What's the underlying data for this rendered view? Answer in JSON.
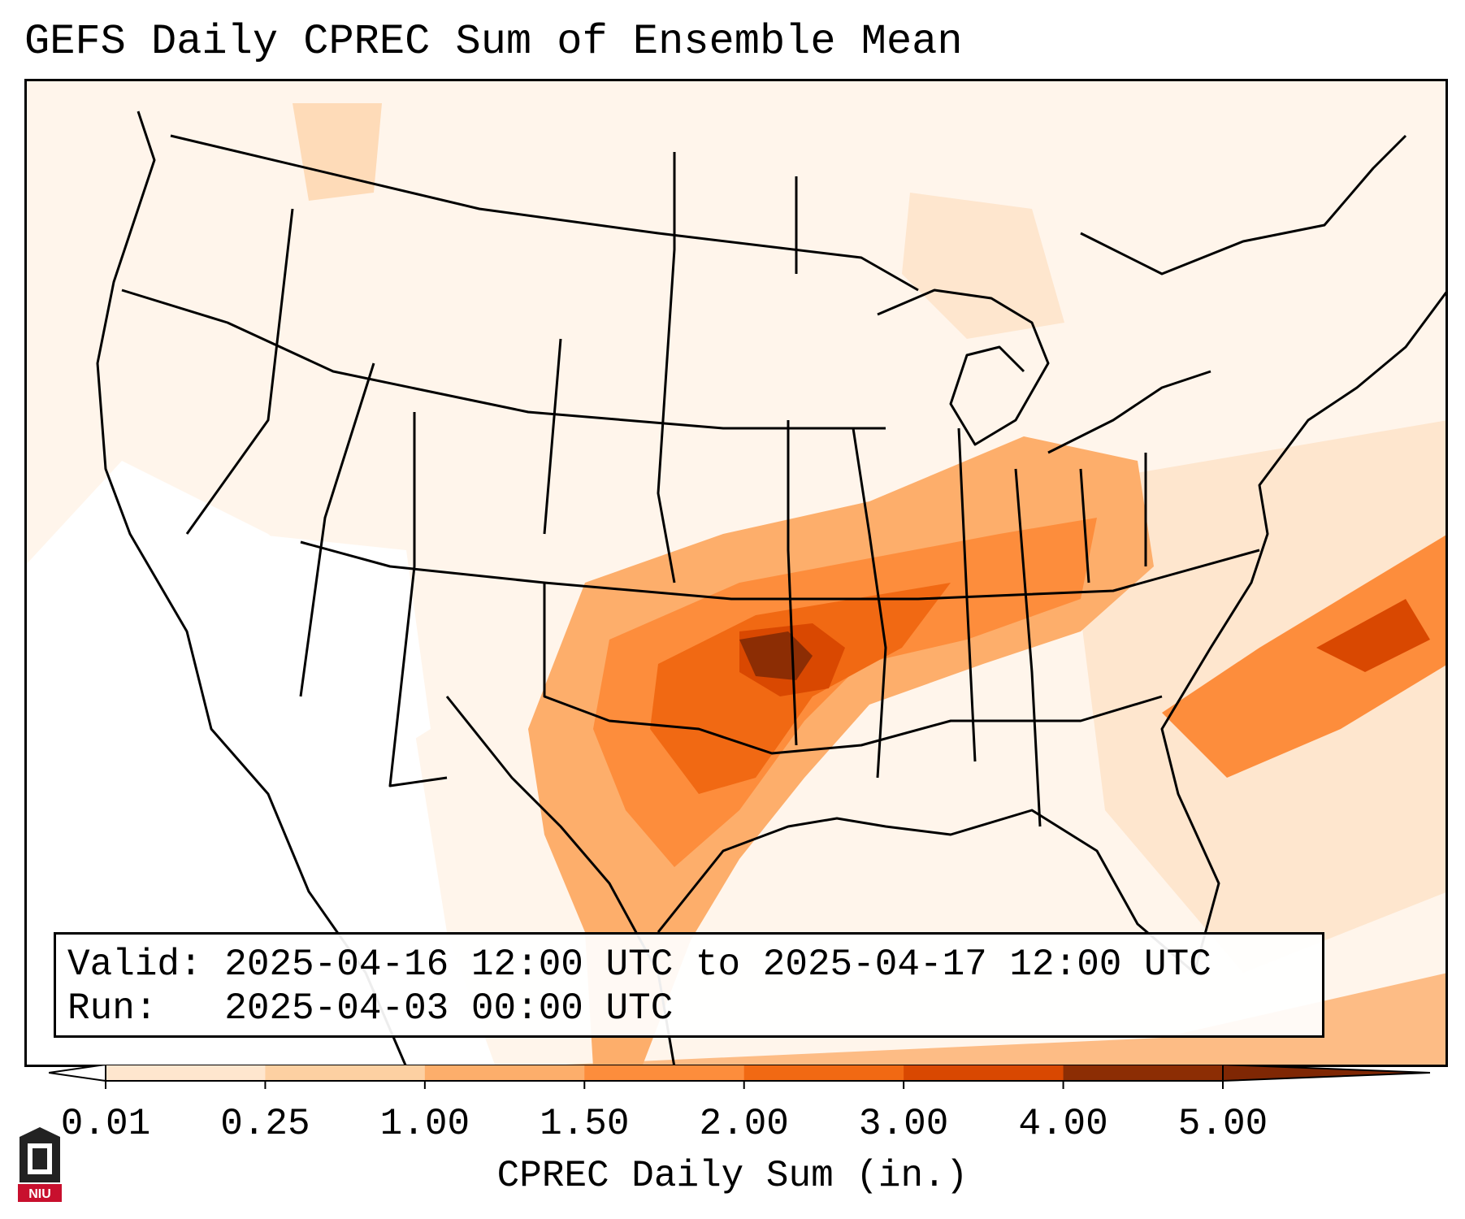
{
  "title": "GEFS Daily CPREC Sum of Ensemble Mean",
  "info": {
    "valid": "Valid: 2025-04-16 12:00 UTC to 2025-04-17 12:00 UTC",
    "run": "Run:   2025-04-03 00:00 UTC"
  },
  "colorbar": {
    "label": "CPREC Daily Sum (in.)",
    "ticks": [
      "0.01",
      "0.25",
      "1.00",
      "1.50",
      "2.00",
      "3.00",
      "4.00",
      "5.00"
    ],
    "colors": [
      "#fff5eb",
      "#fee6ce",
      "#fdd0a2",
      "#fdae6b",
      "#fd8d3c",
      "#f16913",
      "#d94801",
      "#8c2d04"
    ],
    "under_color": "#ffffff",
    "over_color": "#7f2704"
  },
  "logo": {
    "text": "NIU"
  }
}
